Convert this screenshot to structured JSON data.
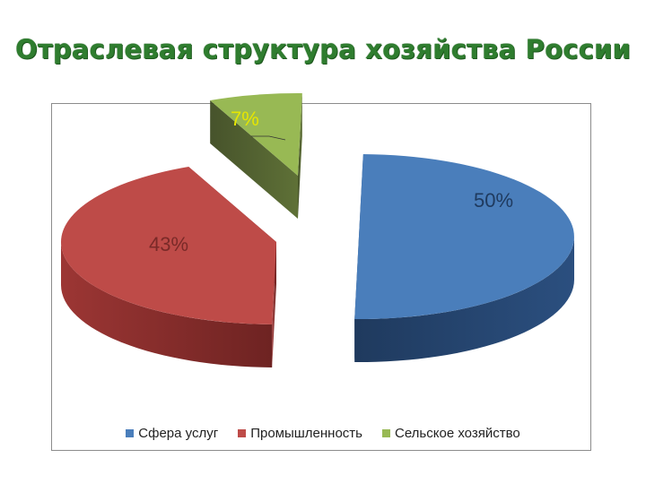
{
  "title": "Отраслевая структура хозяйства России",
  "chart_data": {
    "type": "pie",
    "title": "",
    "series": [
      {
        "name": "Сфера услуг",
        "value": 50,
        "label": "50%",
        "color": "#4a7ebb"
      },
      {
        "name": "Промышленность",
        "value": 43,
        "label": "43%",
        "color": "#be4b48"
      },
      {
        "name": "Сельское хозяйство",
        "value": 7,
        "label": "7%",
        "color": "#98b954"
      }
    ],
    "exploded": true,
    "three_d": true,
    "legend_position": "bottom"
  }
}
